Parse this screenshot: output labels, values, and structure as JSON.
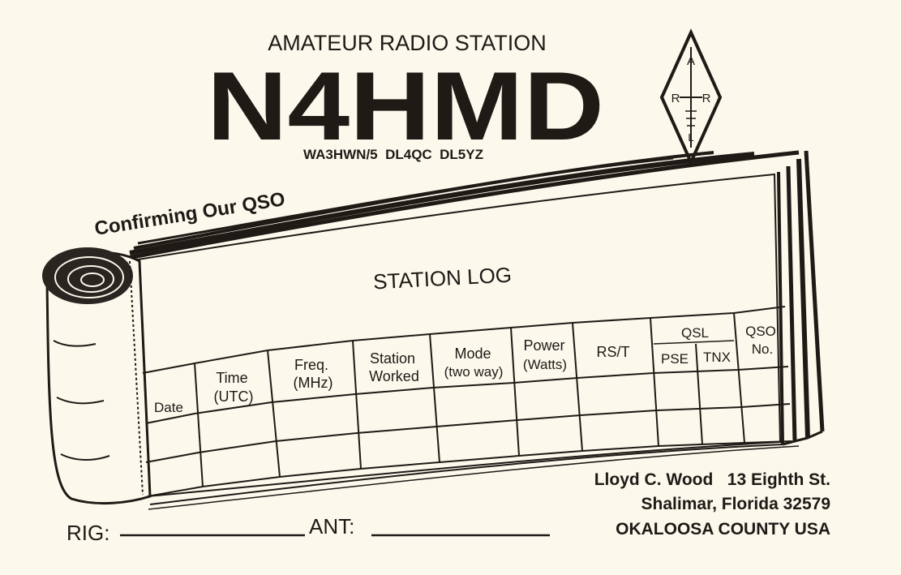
{
  "card": {
    "heading": "AMATEUR RADIO STATION",
    "callsign": "N4HMD",
    "other_calls": "WA3HWN/5  DL4QC  DL5YZ",
    "confirming": "Confirming Our QSO",
    "log_title": "STATION LOG"
  },
  "logo": {
    "letters": [
      "A",
      "R",
      "R",
      "L"
    ],
    "icon": "arrl-diamond-logo"
  },
  "table": {
    "headers": {
      "date": "Date",
      "time_l1": "Time",
      "time_l2": "(UTC)",
      "freq_l1": "Freq.",
      "freq_l2": "(MHz)",
      "station_l1": "Station",
      "station_l2": "Worked",
      "mode_l1": "Mode",
      "mode_l2": "(two way)",
      "power_l1": "Power",
      "power_l2": "(Watts)",
      "rst": "RS/T",
      "qsl": "QSL",
      "pse": "PSE",
      "tnx": "TNX",
      "qso_l1": "QSO",
      "qso_l2": "No."
    }
  },
  "address": {
    "line1": "Lloyd C. Wood   13 Eighth St.",
    "line2": "Shalimar, Florida 32579",
    "line3": "OKALOOSA COUNTY USA"
  },
  "footer": {
    "rig_label": "RIG:",
    "ant_label": "ANT:"
  }
}
